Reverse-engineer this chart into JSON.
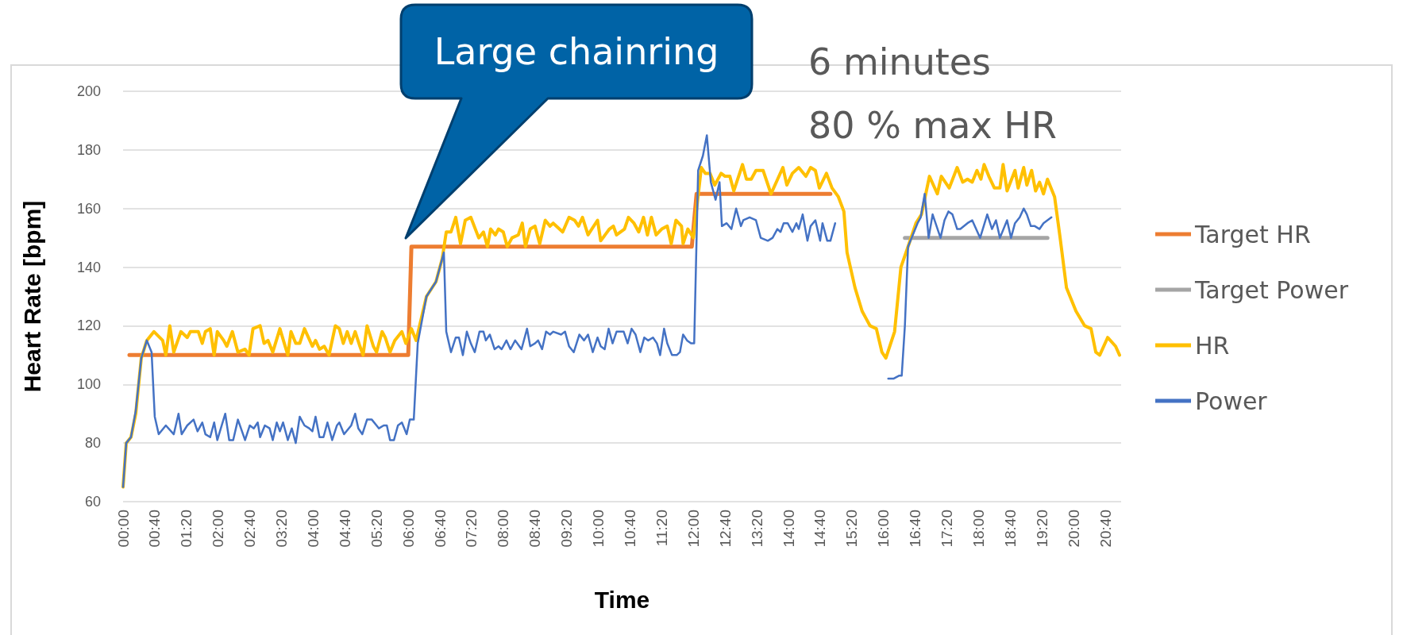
{
  "chart_data": {
    "type": "line",
    "xlabel": "Time",
    "ylabel": "Heart Rate [bpm]",
    "xlim": [
      0,
      1260
    ],
    "ylim": [
      60,
      200
    ],
    "yticks": [
      60,
      80,
      100,
      120,
      140,
      160,
      180,
      200
    ],
    "xticks": [
      {
        "value": 0,
        "label": "00:00"
      },
      {
        "value": 40,
        "label": "00:40"
      },
      {
        "value": 80,
        "label": "01:20"
      },
      {
        "value": 120,
        "label": "02:00"
      },
      {
        "value": 160,
        "label": "02:40"
      },
      {
        "value": 200,
        "label": "03:20"
      },
      {
        "value": 240,
        "label": "04:00"
      },
      {
        "value": 280,
        "label": "04:40"
      },
      {
        "value": 320,
        "label": "05:20"
      },
      {
        "value": 360,
        "label": "06:00"
      },
      {
        "value": 400,
        "label": "06:40"
      },
      {
        "value": 440,
        "label": "07:20"
      },
      {
        "value": 480,
        "label": "08:00"
      },
      {
        "value": 520,
        "label": "08:40"
      },
      {
        "value": 560,
        "label": "09:20"
      },
      {
        "value": 600,
        "label": "10:00"
      },
      {
        "value": 640,
        "label": "10:40"
      },
      {
        "value": 680,
        "label": "11:20"
      },
      {
        "value": 720,
        "label": "12:00"
      },
      {
        "value": 760,
        "label": "12:40"
      },
      {
        "value": 800,
        "label": "13:20"
      },
      {
        "value": 840,
        "label": "14:00"
      },
      {
        "value": 880,
        "label": "14:40"
      },
      {
        "value": 920,
        "label": "15:20"
      },
      {
        "value": 960,
        "label": "16:00"
      },
      {
        "value": 1000,
        "label": "16:40"
      },
      {
        "value": 1040,
        "label": "17:20"
      },
      {
        "value": 1080,
        "label": "18:00"
      },
      {
        "value": 1120,
        "label": "18:40"
      },
      {
        "value": 1160,
        "label": "19:20"
      },
      {
        "value": 1200,
        "label": "20:00"
      },
      {
        "value": 1240,
        "label": "20:40"
      }
    ],
    "grid": "y",
    "legend": "right",
    "marker": "none",
    "line_style": "solid",
    "annotations": [
      "Large chainring",
      "6 minutes\n80 % max HR"
    ],
    "series": [
      {
        "name": "Target HR",
        "color": "#ed7d31",
        "x": [
          8,
          360,
          364,
          718,
          724,
          893
        ],
        "values": [
          110,
          110,
          147,
          147,
          165,
          165
        ]
      },
      {
        "name": "Target Power",
        "color": "#a5a5a5",
        "x": [
          987,
          1167
        ],
        "values": [
          150,
          150
        ]
      },
      {
        "name": "HR",
        "color": "#ffc000",
        "x": [
          0,
          4,
          10,
          16,
          23,
          30,
          39,
          50,
          54,
          59,
          64,
          73,
          81,
          85,
          95,
          100,
          104,
          110,
          115,
          119,
          127,
          131,
          138,
          145,
          154,
          159,
          164,
          173,
          178,
          183,
          189,
          198,
          208,
          212,
          218,
          223,
          229,
          239,
          243,
          248,
          254,
          260,
          268,
          273,
          278,
          283,
          288,
          293,
          299,
          303,
          308,
          316,
          320,
          327,
          331,
          337,
          343,
          352,
          357,
          364,
          370,
          383,
          395,
          403,
          408,
          414,
          420,
          426,
          432,
          439,
          449,
          455,
          460,
          464,
          470,
          474,
          480,
          485,
          491,
          499,
          504,
          508,
          514,
          520,
          526,
          533,
          539,
          543,
          555,
          563,
          570,
          575,
          580,
          587,
          599,
          603,
          614,
          619,
          623,
          633,
          638,
          645,
          651,
          657,
          662,
          667,
          673,
          680,
          687,
          692,
          698,
          705,
          707,
          713,
          720,
          730,
          735,
          741,
          747,
          755,
          760,
          766,
          771,
          782,
          787,
          793,
          799,
          808,
          818,
          833,
          838,
          845,
          853,
          862,
          868,
          874,
          879,
          888,
          895,
          903,
          910,
          914,
          924,
          933,
          937,
          943,
          951,
          958,
          963,
          974,
          982,
          991,
          1001,
          1008,
          1018,
          1028,
          1033,
          1043,
          1053,
          1060,
          1066,
          1072,
          1078,
          1083,
          1087,
          1093,
          1100,
          1107,
          1111,
          1116,
          1126,
          1130,
          1137,
          1141,
          1147,
          1152,
          1157,
          1162,
          1167,
          1176,
          1183,
          1191,
          1203,
          1214,
          1222,
          1228,
          1233,
          1243,
          1253,
          1258
        ],
        "values": [
          65,
          80,
          82,
          90,
          109,
          115,
          118,
          115,
          110,
          120,
          111,
          118,
          116,
          118,
          118,
          114,
          118,
          119,
          110,
          118,
          115,
          113,
          118,
          111,
          112,
          110,
          119,
          120,
          114,
          115,
          111,
          119,
          110,
          118,
          114,
          114,
          119,
          113,
          115,
          112,
          113,
          110,
          120,
          119,
          114,
          118,
          114,
          118,
          113,
          110,
          120,
          113,
          111,
          118,
          116,
          111,
          115,
          118,
          114,
          119,
          115,
          130,
          135,
          143,
          152,
          152,
          157,
          148,
          156,
          157,
          150,
          152,
          147,
          153,
          151,
          153,
          152,
          147,
          150,
          151,
          155,
          147,
          153,
          154,
          148,
          156,
          154,
          155,
          152,
          157,
          156,
          154,
          157,
          151,
          156,
          149,
          153,
          154,
          151,
          153,
          157,
          155,
          152,
          157,
          151,
          157,
          151,
          153,
          154,
          148,
          156,
          154,
          148,
          153,
          150,
          174,
          172,
          172,
          168,
          172,
          171,
          171,
          166,
          175,
          170,
          170,
          173,
          173,
          165,
          174,
          168,
          172,
          174,
          171,
          174,
          173,
          167,
          172,
          167,
          164,
          159,
          145,
          133,
          125,
          123,
          120,
          119,
          111,
          109,
          118,
          140,
          147,
          155,
          158,
          171,
          165,
          171,
          167,
          174,
          169,
          170,
          169,
          173,
          170,
          175,
          171,
          167,
          167,
          175,
          166,
          173,
          167,
          174,
          168,
          173,
          166,
          169,
          165,
          170,
          164,
          150,
          133,
          125,
          120,
          119,
          111,
          110,
          116,
          113,
          110
        ]
      },
      {
        "name": "Power",
        "color": "#4472c4",
        "x": [
          0,
          4,
          10,
          16,
          23,
          30,
          36,
          40,
          45,
          54,
          64,
          70,
          74,
          81,
          89,
          94,
          100,
          104,
          110,
          115,
          119,
          129,
          134,
          139,
          145,
          154,
          160,
          165,
          170,
          173,
          179,
          185,
          189,
          194,
          198,
          202,
          208,
          213,
          218,
          223,
          229,
          235,
          239,
          243,
          248,
          253,
          258,
          264,
          270,
          273,
          279,
          288,
          293,
          297,
          302,
          308,
          314,
          320,
          323,
          329,
          333,
          337,
          342,
          347,
          352,
          358,
          362,
          367,
          372,
          383,
          395,
          405,
          408,
          414,
          420,
          424,
          429,
          434,
          439,
          444,
          450,
          455,
          458,
          463,
          469,
          474,
          478,
          484,
          489,
          495,
          503,
          510,
          514,
          520,
          524,
          529,
          534,
          539,
          543,
          553,
          558,
          563,
          569,
          576,
          582,
          587,
          593,
          599,
          603,
          608,
          613,
          618,
          623,
          632,
          637,
          642,
          647,
          653,
          658,
          663,
          669,
          674,
          678,
          683,
          687,
          693,
          699,
          703,
          707,
          712,
          717,
          721,
          726,
          732,
          737,
          742,
          748,
          753,
          756,
          762,
          768,
          774,
          780,
          783,
          791,
          799,
          805,
          814,
          820,
          826,
          830,
          834,
          839,
          845,
          850,
          853,
          858,
          864,
          868,
          874,
          880,
          883,
          889,
          893,
          899,
          930,
          966,
          973,
          980,
          983,
          987,
          991,
          997,
          1003,
          1007,
          1012,
          1017,
          1022,
          1032,
          1037,
          1042,
          1047,
          1053,
          1057,
          1066,
          1072,
          1082,
          1091,
          1097,
          1102,
          1107,
          1116,
          1121,
          1126,
          1132,
          1137,
          1141,
          1146,
          1151,
          1157,
          1162,
          1167,
          1172
        ],
        "values": [
          65,
          80,
          82,
          91,
          109,
          115,
          111,
          89,
          83,
          86,
          83,
          90,
          83,
          86,
          88,
          84,
          87,
          83,
          82,
          87,
          81,
          90,
          81,
          81,
          88,
          81,
          86,
          85,
          87,
          82,
          86,
          85,
          81,
          87,
          84,
          87,
          81,
          85,
          80,
          89,
          86,
          85,
          84,
          89,
          82,
          82,
          87,
          81,
          86,
          87,
          83,
          86,
          90,
          85,
          83,
          88,
          88,
          86,
          85,
          86,
          86,
          81,
          81,
          86,
          87,
          83,
          88,
          88,
          114,
          130,
          135,
          145,
          118,
          111,
          116,
          116,
          110,
          118,
          114,
          111,
          118,
          118,
          115,
          117,
          112,
          113,
          112,
          115,
          112,
          115,
          112,
          119,
          113,
          114,
          115,
          112,
          118,
          117,
          118,
          117,
          118,
          113,
          111,
          117,
          115,
          117,
          111,
          116,
          113,
          112,
          119,
          114,
          118,
          118,
          114,
          119,
          117,
          111,
          116,
          115,
          116,
          114,
          110,
          119,
          114,
          110,
          110,
          111,
          117,
          115,
          114,
          114,
          173,
          178,
          185,
          169,
          163,
          169,
          154,
          155,
          153,
          160,
          154,
          156,
          157,
          156,
          150,
          149,
          150,
          153,
          152,
          155,
          155,
          152,
          155,
          153,
          158,
          149,
          154,
          156,
          149,
          155,
          149,
          149,
          155,
          null,
          102,
          102,
          103,
          103,
          120,
          147,
          151,
          155,
          157,
          165,
          150,
          158,
          150,
          156,
          159,
          158,
          153,
          153,
          155,
          156,
          150,
          158,
          153,
          156,
          150,
          156,
          150,
          155,
          157,
          160,
          158,
          154,
          154,
          153,
          155,
          156,
          157
        ]
      }
    ]
  }
}
